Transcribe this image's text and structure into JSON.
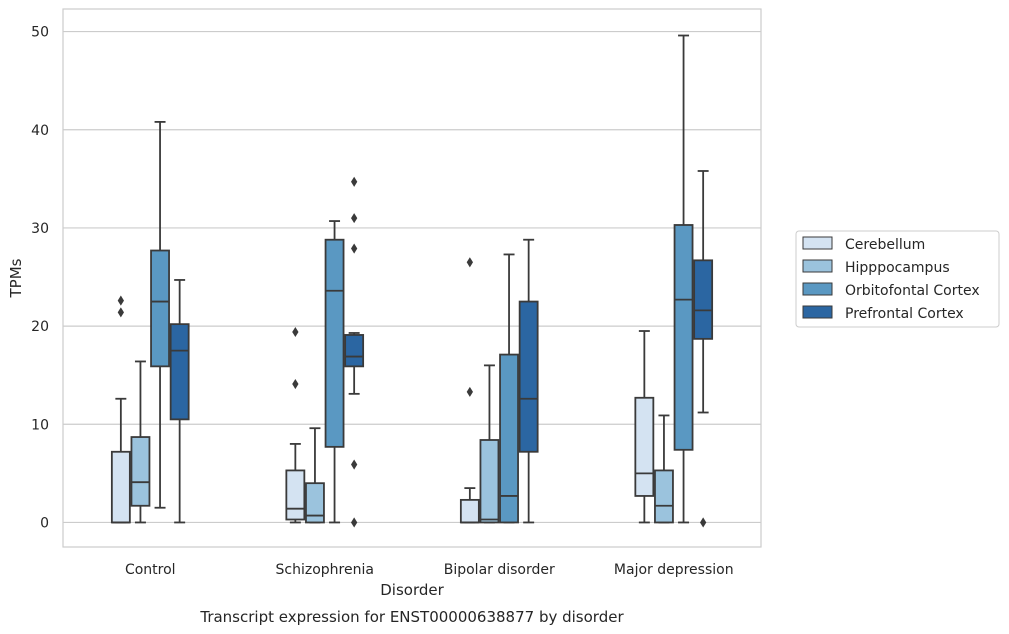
{
  "chart_data": {
    "type": "boxplot",
    "caption": "Transcript expression for ENST00000638877 by disorder",
    "xlabel": "Disorder",
    "ylabel": "TPMs",
    "ylim": [
      -2.5,
      52.3
    ],
    "yticks": [
      0,
      10,
      20,
      30,
      40,
      50
    ],
    "grid": "horizontal",
    "legend_position": "right",
    "categories": [
      "Control",
      "Schizophrenia",
      "Bipolar disorder",
      "Major depression"
    ],
    "series": [
      {
        "name": "Cerebellum",
        "color": "#d4e3f2",
        "boxes": [
          {
            "whislo": 0,
            "q1": 0,
            "med": 0,
            "q3": 7.2,
            "whishi": 12.6,
            "fliers": [
              21.4,
              22.6
            ]
          },
          {
            "whislo": 0,
            "q1": 0.3,
            "med": 1.4,
            "q3": 5.3,
            "whishi": 8.0,
            "fliers": [
              14.1,
              19.4
            ]
          },
          {
            "whislo": 0,
            "q1": 0,
            "med": 0,
            "q3": 2.3,
            "whishi": 3.5,
            "fliers": [
              13.3,
              26.5
            ]
          },
          {
            "whislo": 0,
            "q1": 2.7,
            "med": 5.0,
            "q3": 12.7,
            "whishi": 19.5,
            "fliers": []
          }
        ]
      },
      {
        "name": "Hipppocampus",
        "color": "#9bc3dd",
        "boxes": [
          {
            "whislo": 0,
            "q1": 1.7,
            "med": 4.1,
            "q3": 8.7,
            "whishi": 16.4,
            "fliers": []
          },
          {
            "whislo": 0,
            "q1": 0,
            "med": 0.7,
            "q3": 4.0,
            "whishi": 9.6,
            "fliers": []
          },
          {
            "whislo": 0,
            "q1": 0,
            "med": 0.3,
            "q3": 8.4,
            "whishi": 16.0,
            "fliers": []
          },
          {
            "whislo": 0,
            "q1": 0,
            "med": 1.7,
            "q3": 5.3,
            "whishi": 10.9,
            "fliers": []
          }
        ]
      },
      {
        "name": "Orbitofontal Cortex",
        "color": "#5a98c2",
        "boxes": [
          {
            "whislo": 1.5,
            "q1": 15.9,
            "med": 22.5,
            "q3": 27.7,
            "whishi": 40.8,
            "fliers": []
          },
          {
            "whislo": 0,
            "q1": 7.7,
            "med": 23.6,
            "q3": 28.8,
            "whishi": 30.7,
            "fliers": []
          },
          {
            "whislo": 0,
            "q1": 0,
            "med": 2.7,
            "q3": 17.1,
            "whishi": 27.3,
            "fliers": []
          },
          {
            "whislo": 0,
            "q1": 7.4,
            "med": 22.7,
            "q3": 30.3,
            "whishi": 49.6,
            "fliers": []
          }
        ]
      },
      {
        "name": "Prefrontal Cortex",
        "color": "#2b66a2",
        "boxes": [
          {
            "whislo": 0,
            "q1": 10.5,
            "med": 17.5,
            "q3": 20.2,
            "whishi": 24.7,
            "fliers": []
          },
          {
            "whislo": 13.1,
            "q1": 15.9,
            "med": 16.9,
            "q3": 19.1,
            "whishi": 19.3,
            "fliers": [
              0,
              5.9,
              27.9,
              31.0,
              34.7
            ]
          },
          {
            "whislo": 0,
            "q1": 7.2,
            "med": 12.6,
            "q3": 22.5,
            "whishi": 28.8,
            "fliers": []
          },
          {
            "whislo": 11.2,
            "q1": 18.7,
            "med": 21.6,
            "q3": 26.7,
            "whishi": 35.8,
            "fliers": [
              0
            ]
          }
        ]
      }
    ]
  }
}
